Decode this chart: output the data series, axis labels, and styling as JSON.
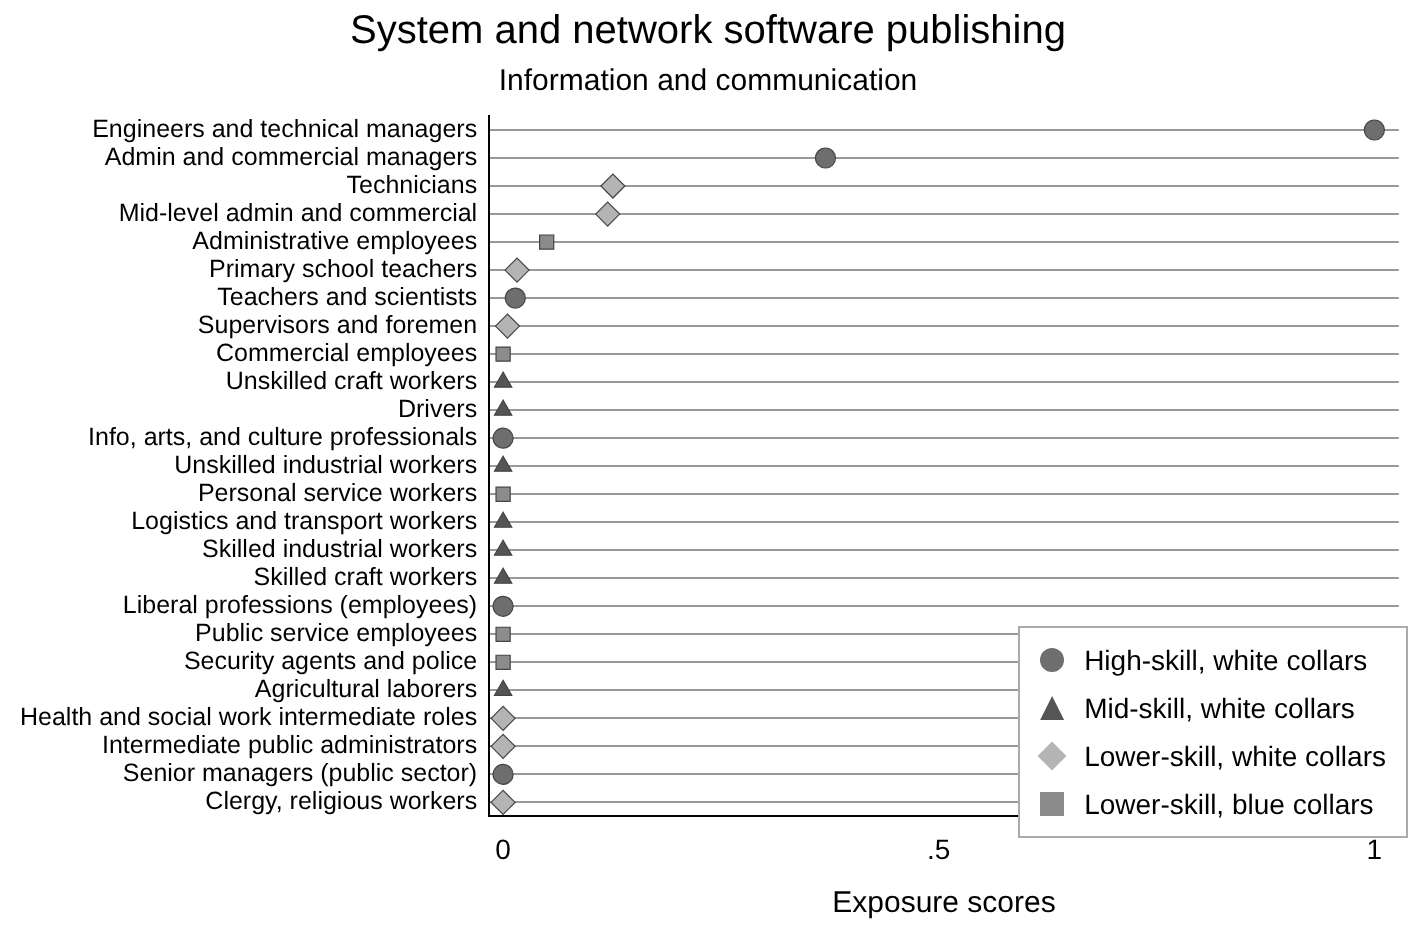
{
  "chart_data": {
    "type": "scatter",
    "orientation": "horizontal",
    "title": "System and network software publishing",
    "subtitle": "Information and communication",
    "xlabel": "Exposure scores",
    "categories": [
      "Engineers and technical managers",
      "Admin and commercial managers",
      "Technicians",
      "Mid-level admin and commercial",
      "Administrative employees",
      "Primary school teachers",
      "Teachers and scientists",
      "Supervisors and foremen",
      "Commercial employees",
      "Unskilled craft workers",
      "Drivers",
      "Info, arts, and culture professionals",
      "Unskilled industrial workers",
      "Personal service workers",
      "Logistics and transport workers",
      "Skilled industrial workers",
      "Skilled craft workers",
      "Liberal professions (employees)",
      "Public service employees",
      "Security agents and police",
      "Agricultural laborers",
      "Health and social work intermediate roles",
      "Intermediate public administrators",
      "Senior managers (public sector)",
      "Clergy, religious workers"
    ],
    "series": [
      {
        "name": "High-skill, white collars",
        "color": "#6e6e6e",
        "marker": "circle",
        "values": [
          1,
          0.37,
          null,
          null,
          null,
          null,
          0.014,
          null,
          null,
          null,
          null,
          0,
          null,
          null,
          null,
          null,
          null,
          0,
          null,
          null,
          null,
          null,
          null,
          0,
          null
        ]
      },
      {
        "name": "Mid-skill, white collars",
        "color": "#555555",
        "marker": "triangle",
        "values": [
          null,
          null,
          null,
          null,
          null,
          null,
          null,
          null,
          null,
          0,
          0,
          null,
          0,
          null,
          0,
          0,
          0,
          null,
          null,
          null,
          0,
          null,
          null,
          null,
          null
        ]
      },
      {
        "name": "Lower-skill, white collars",
        "color": "#b4b4b4",
        "marker": "diamond",
        "values": [
          null,
          null,
          0.126,
          0.12,
          null,
          0.016,
          null,
          0.005,
          null,
          null,
          null,
          null,
          null,
          null,
          null,
          null,
          null,
          null,
          null,
          null,
          null,
          0,
          0,
          null,
          0
        ]
      },
      {
        "name": "Lower-skill, blue collars",
        "color": "#8c8c8c",
        "marker": "square",
        "values": [
          null,
          null,
          null,
          null,
          0.05,
          null,
          null,
          null,
          0,
          null,
          null,
          null,
          null,
          0,
          null,
          null,
          null,
          null,
          0,
          0,
          null,
          null,
          null,
          null,
          null
        ]
      }
    ],
    "xlim": [
      -0.016,
      1.028
    ],
    "xticks": [
      0,
      {
        "value": 0.5,
        "label": ".5"
      },
      1
    ],
    "grid": "y",
    "legend": "bottom right"
  }
}
